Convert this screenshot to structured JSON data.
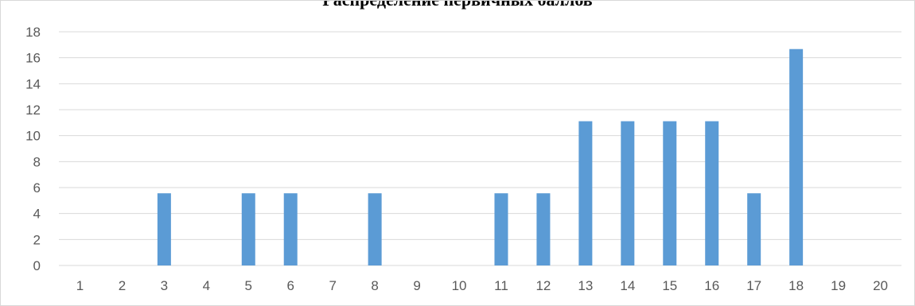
{
  "chart_data": {
    "type": "bar",
    "title": "Распределение первичных баллов",
    "categories": [
      "1",
      "2",
      "3",
      "4",
      "5",
      "6",
      "7",
      "8",
      "9",
      "10",
      "11",
      "12",
      "13",
      "14",
      "15",
      "16",
      "17",
      "18",
      "19",
      "20"
    ],
    "values": [
      0,
      0,
      5.56,
      0,
      5.56,
      5.56,
      0,
      5.56,
      0,
      0,
      5.56,
      5.56,
      11.11,
      11.11,
      11.11,
      11.11,
      5.56,
      16.67,
      0,
      0
    ],
    "y_ticks": [
      "0",
      "2",
      "4",
      "6",
      "8",
      "10",
      "12",
      "14",
      "16",
      "18"
    ],
    "ylim": [
      0,
      18
    ],
    "xlabel": "",
    "ylabel": "",
    "grid": true,
    "legend": "none",
    "bar_color": "#5b9bd5",
    "grid_color": "#d9d9d9"
  }
}
